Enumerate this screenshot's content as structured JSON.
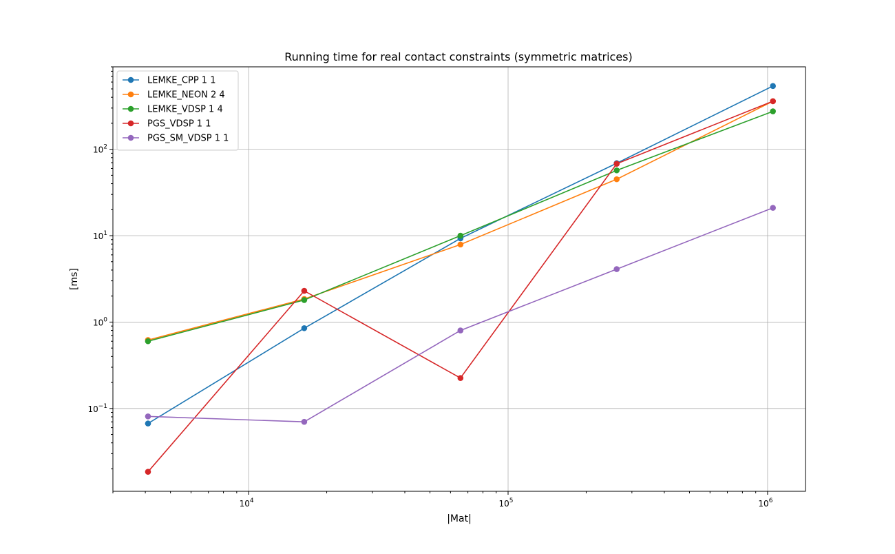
{
  "chart_data": {
    "type": "line",
    "title": "Running time for real contact constraints (symmetric matrices)",
    "xlabel": "|Mat|",
    "ylabel": "[ms]",
    "xscale": "log",
    "yscale": "log",
    "xlim": [
      3000,
      1400000
    ],
    "ylim": [
      0.011,
      900
    ],
    "grid": true,
    "legend_position": "top-left",
    "x": [
      4096,
      16384,
      65536,
      262144,
      1048576
    ],
    "x_ticks": [
      {
        "value": 10000,
        "base": "10",
        "exp": "4"
      },
      {
        "value": 100000,
        "base": "10",
        "exp": "5"
      },
      {
        "value": 1000000,
        "base": "10",
        "exp": "6"
      }
    ],
    "y_ticks": [
      {
        "value": 0.1,
        "base": "10",
        "exp": "−1"
      },
      {
        "value": 1,
        "base": "10",
        "exp": "0"
      },
      {
        "value": 10,
        "base": "10",
        "exp": "1"
      },
      {
        "value": 100,
        "base": "10",
        "exp": "2"
      }
    ],
    "series": [
      {
        "name": "LEMKE_CPP 1 1",
        "color": "#1f77b4",
        "values": [
          0.067,
          0.85,
          9.3,
          69,
          540
        ]
      },
      {
        "name": "LEMKE_NEON 2 4",
        "color": "#ff7f0e",
        "values": [
          0.62,
          1.85,
          7.9,
          45,
          360
        ]
      },
      {
        "name": "LEMKE_VDSP 1 4",
        "color": "#2ca02c",
        "values": [
          0.6,
          1.8,
          10.0,
          57,
          275
        ]
      },
      {
        "name": "PGS_VDSP 1 1",
        "color": "#d62728",
        "values": [
          0.0185,
          2.3,
          0.225,
          68,
          360
        ]
      },
      {
        "name": "PGS_SM_VDSP 1 1",
        "color": "#9467bd",
        "values": [
          0.081,
          0.07,
          0.8,
          4.1,
          21
        ]
      }
    ]
  }
}
